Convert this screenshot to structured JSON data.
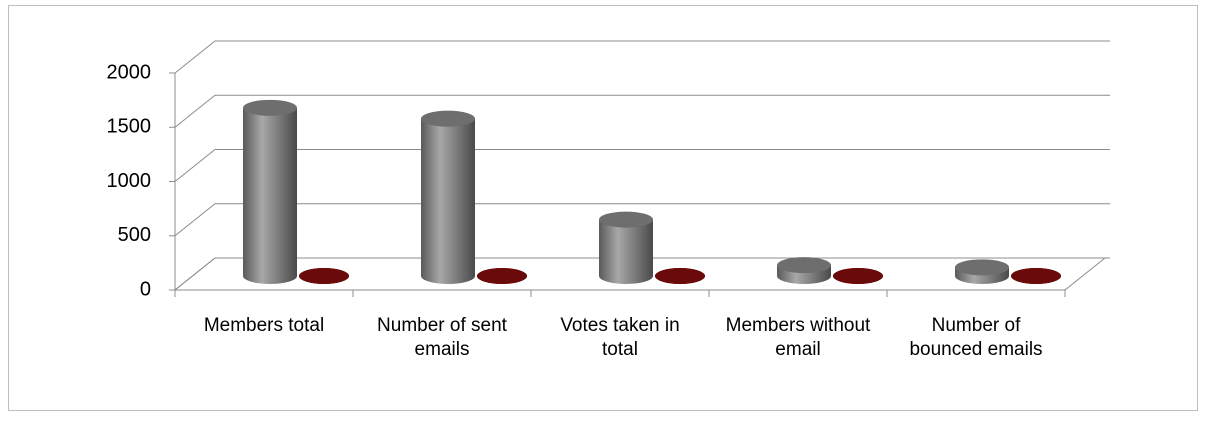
{
  "chart_data": {
    "type": "bar3d",
    "categories": [
      "Members total",
      "Number of sent emails",
      "Votes taken in total",
      "Members without email",
      "Number of bounced emails"
    ],
    "series": [
      {
        "color": "#7f7f7f",
        "values": [
          1550,
          1450,
          520,
          100,
          80
        ]
      },
      {
        "color": "#7a0c0c",
        "values": [
          0,
          0,
          0,
          0,
          0
        ]
      }
    ],
    "ylim": [
      0,
      2000
    ],
    "yticks": [
      0,
      500,
      1000,
      1500,
      2000
    ],
    "grid": true
  }
}
